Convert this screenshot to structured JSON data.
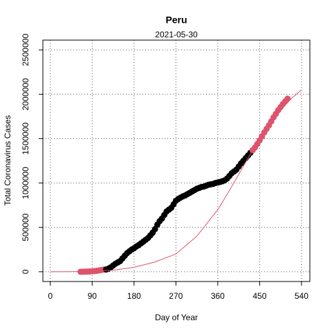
{
  "chart_data": {
    "type": "scatter",
    "title": "Peru",
    "subtitle": "2021-05-30",
    "x_label": "Day of Year",
    "y_label": "Total Coronavirus Cases",
    "xlim": [
      -16,
      558
    ],
    "ylim": [
      -110000,
      2610000
    ],
    "xticks": [
      0,
      90,
      180,
      270,
      360,
      450,
      540
    ],
    "yticks": [
      0,
      500000,
      1000000,
      1500000,
      2000000,
      2500000
    ],
    "grid": true,
    "series": [
      {
        "color": "#df536b",
        "mode": "points",
        "x": [
          65,
          70,
          75,
          80,
          85,
          90,
          95,
          100,
          105,
          110,
          115
        ],
        "values": [
          0,
          300,
          1000,
          2000,
          3000,
          5000,
          8000,
          11000,
          15000,
          20000,
          25000
        ]
      },
      {
        "color": "#000000",
        "mode": "points",
        "x": [
          120,
          125,
          130,
          135,
          140,
          145,
          150,
          155,
          160,
          165,
          170,
          175,
          180,
          185,
          190,
          195,
          200,
          205,
          210,
          215,
          220,
          225,
          230,
          235,
          240,
          245,
          250,
          255,
          260,
          265,
          270,
          275,
          280,
          285,
          290,
          295,
          300,
          305,
          310,
          315,
          320,
          325,
          330,
          335,
          340,
          345,
          350,
          355,
          360,
          365,
          370,
          375,
          380,
          385,
          390,
          395,
          400,
          405,
          410,
          415,
          420,
          425,
          430
        ],
        "values": [
          25000,
          35000,
          50000,
          70000,
          90000,
          105000,
          120000,
          150000,
          180000,
          210000,
          230000,
          250000,
          265000,
          285000,
          300000,
          320000,
          340000,
          360000,
          380000,
          410000,
          440000,
          480000,
          530000,
          570000,
          600000,
          640000,
          680000,
          700000,
          720000,
          760000,
          800000,
          820000,
          835000,
          850000,
          860000,
          875000,
          890000,
          905000,
          920000,
          935000,
          945000,
          955000,
          960000,
          970000,
          980000,
          985000,
          990000,
          1000000,
          1005000,
          1012000,
          1020000,
          1030000,
          1050000,
          1080000,
          1110000,
          1130000,
          1150000,
          1185000,
          1220000,
          1250000,
          1280000,
          1310000,
          1340000
        ]
      },
      {
        "color": "#df536b",
        "mode": "points",
        "x": [
          435,
          440,
          445,
          450,
          455,
          460,
          465,
          470,
          475,
          480,
          485,
          490,
          495,
          500,
          505,
          510
        ],
        "values": [
          1370000,
          1400000,
          1440000,
          1480000,
          1525000,
          1570000,
          1610000,
          1650000,
          1695000,
          1740000,
          1780000,
          1820000,
          1855000,
          1890000,
          1920000,
          1950000
        ]
      },
      {
        "color": "#df536b",
        "mode": "line",
        "x": [
          0,
          45,
          90,
          135,
          180,
          225,
          270,
          315,
          360,
          380,
          400,
          425,
          450,
          475,
          500,
          520,
          540
        ],
        "values": [
          0,
          1500,
          5000,
          18000,
          50000,
          110000,
          200000,
          400000,
          700000,
          870000,
          1050000,
          1280000,
          1500000,
          1690000,
          1850000,
          1960000,
          2050000
        ]
      }
    ]
  }
}
